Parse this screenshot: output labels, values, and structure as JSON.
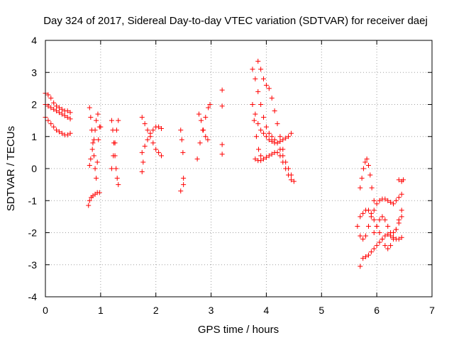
{
  "chart_data": {
    "type": "scatter",
    "title": "Day 324 of 2017, Sidereal Day-to-day VTEC variation (SDTVAR) for receiver daej",
    "xlabel": "GPS time / hours",
    "ylabel": "SDTVAR / TECUs",
    "xlim": [
      0,
      7
    ],
    "ylim": [
      -4,
      4
    ],
    "xticks": [
      "0",
      "1",
      "2",
      "3",
      "4",
      "5",
      "6",
      "7"
    ],
    "yticks": [
      "-4",
      "-3",
      "-2",
      "-1",
      "0",
      "1",
      "2",
      "3",
      "4"
    ],
    "grid": true,
    "marker": "+",
    "color": "#ff0000",
    "series": [
      {
        "name": "sdtvar",
        "tracks": [
          {
            "x": [
              0.0,
              0.05,
              0.1,
              0.15,
              0.2,
              0.25,
              0.3,
              0.35,
              0.4,
              0.45
            ],
            "y": [
              2.35,
              2.3,
              2.2,
              2.05,
              1.95,
              1.9,
              1.85,
              1.8,
              1.8,
              1.75
            ]
          },
          {
            "x": [
              0.0,
              0.05,
              0.1,
              0.15,
              0.2,
              0.25,
              0.3,
              0.35,
              0.4,
              0.45
            ],
            "y": [
              2.0,
              1.95,
              1.9,
              1.85,
              1.8,
              1.75,
              1.7,
              1.65,
              1.6,
              1.55
            ]
          },
          {
            "x": [
              0.0,
              0.05,
              0.1,
              0.15,
              0.2,
              0.25,
              0.3,
              0.35,
              0.4,
              0.45
            ],
            "y": [
              1.6,
              1.5,
              1.4,
              1.3,
              1.2,
              1.15,
              1.1,
              1.05,
              1.05,
              1.1
            ]
          },
          {
            "x": [
              0.8,
              0.82,
              0.84,
              0.86,
              0.88,
              0.9,
              0.92,
              0.94,
              0.96,
              0.98,
              1.0
            ],
            "y": [
              1.9,
              1.6,
              1.2,
              0.8,
              0.4,
              0.0,
              -0.3,
              0.2,
              0.9,
              1.3,
              1.3
            ]
          },
          {
            "x": [
              0.78,
              0.8,
              0.83,
              0.86,
              0.9,
              0.94,
              0.98
            ],
            "y": [
              -1.15,
              -1.0,
              -0.9,
              -0.85,
              -0.8,
              -0.75,
              -0.75
            ]
          },
          {
            "x": [
              0.8,
              0.82,
              0.85,
              0.88,
              0.9,
              0.92,
              0.95
            ],
            "y": [
              0.1,
              0.3,
              0.6,
              0.9,
              1.2,
              1.5,
              1.7
            ]
          },
          {
            "x": [
              1.2,
              1.22,
              1.24,
              1.26,
              1.28,
              1.3,
              1.32
            ],
            "y": [
              1.5,
              1.2,
              0.8,
              0.4,
              0.0,
              -0.3,
              -0.5
            ]
          },
          {
            "x": [
              1.2,
              1.23,
              1.26,
              1.29,
              1.32
            ],
            "y": [
              0.0,
              0.4,
              0.8,
              1.2,
              1.5
            ]
          },
          {
            "x": [
              1.75,
              1.8,
              1.85,
              1.9,
              1.95,
              2.0,
              2.05,
              2.1
            ],
            "y": [
              1.6,
              1.4,
              1.2,
              1.0,
              0.8,
              0.6,
              0.5,
              0.4
            ]
          },
          {
            "x": [
              1.75,
              1.8,
              1.85,
              1.9,
              1.95,
              2.0,
              2.05,
              2.1
            ],
            "y": [
              0.5,
              0.7,
              0.9,
              1.1,
              1.2,
              1.3,
              1.3,
              1.25
            ]
          },
          {
            "x": [
              1.75,
              1.77
            ],
            "y": [
              -0.1,
              0.2
            ]
          },
          {
            "x": [
              2.45,
              2.47,
              2.49,
              2.5
            ],
            "y": [
              1.2,
              0.9,
              0.5,
              -0.3
            ]
          },
          {
            "x": [
              2.45,
              2.5
            ],
            "y": [
              -0.7,
              -0.5
            ]
          },
          {
            "x": [
              2.75,
              2.8,
              2.85,
              2.9,
              2.95,
              2.98
            ],
            "y": [
              0.3,
              0.8,
              1.2,
              1.6,
              1.9,
              2.0
            ]
          },
          {
            "x": [
              2.78,
              2.82,
              2.86,
              2.9,
              2.94
            ],
            "y": [
              1.7,
              1.5,
              1.2,
              1.0,
              0.9
            ]
          },
          {
            "x": [
              3.2,
              3.2,
              3.2,
              3.2
            ],
            "y": [
              2.45,
              1.95,
              0.75,
              0.45
            ]
          },
          {
            "x": [
              3.75,
              3.8,
              3.85,
              3.9,
              3.95,
              4.0,
              4.05,
              4.1,
              4.15,
              4.2,
              4.25,
              4.3,
              4.35,
              4.4,
              4.45,
              4.5
            ],
            "y": [
              3.1,
              2.8,
              2.4,
              2.0,
              1.6,
              1.3,
              1.1,
              1.0,
              0.9,
              0.8,
              0.6,
              0.4,
              0.2,
              0.0,
              -0.2,
              -0.4
            ]
          },
          {
            "x": [
              3.85,
              3.9,
              3.95,
              4.0,
              4.05,
              4.1,
              4.15,
              4.2,
              4.25,
              4.3
            ],
            "y": [
              3.35,
              3.1,
              2.8,
              2.6,
              2.5,
              2.2,
              1.8,
              1.4,
              1.0,
              0.6
            ]
          },
          {
            "x": [
              3.8,
              3.85,
              3.9,
              3.95,
              4.0,
              4.05,
              4.1,
              4.15,
              4.2,
              4.25,
              4.3,
              4.35,
              4.4,
              4.45
            ],
            "y": [
              1.7,
              1.4,
              1.2,
              1.1,
              1.0,
              0.9,
              0.85,
              0.8,
              0.8,
              0.85,
              0.9,
              0.95,
              1.0,
              1.1
            ]
          },
          {
            "x": [
              3.8,
              3.85,
              3.9,
              3.95,
              4.0,
              4.05,
              4.1,
              4.15,
              4.2,
              4.25,
              4.3,
              4.35,
              4.4,
              4.45
            ],
            "y": [
              0.3,
              0.25,
              0.25,
              0.3,
              0.35,
              0.4,
              0.45,
              0.5,
              0.5,
              0.4,
              0.2,
              0.0,
              -0.2,
              -0.35
            ]
          },
          {
            "x": [
              3.75,
              3.78,
              3.82,
              3.86,
              3.9
            ],
            "y": [
              2.0,
              1.5,
              1.0,
              0.6,
              0.4
            ]
          },
          {
            "x": [
              5.65,
              5.7,
              5.75,
              5.8,
              5.85,
              5.9,
              5.95,
              6.0,
              6.05,
              6.1,
              6.15,
              6.2,
              6.25,
              6.3,
              6.35,
              6.4,
              6.45
            ],
            "y": [
              -1.8,
              -2.1,
              -2.2,
              -2.1,
              -1.8,
              -1.5,
              -1.3,
              -1.1,
              -1.0,
              -0.95,
              -0.95,
              -1.0,
              -1.05,
              -1.1,
              -1.0,
              -0.9,
              -0.8
            ]
          },
          {
            "x": [
              5.7,
              5.75,
              5.8,
              5.85,
              5.9,
              5.95,
              6.0,
              6.05,
              6.1,
              6.15,
              6.2,
              6.25,
              6.3,
              6.35,
              6.4,
              6.45
            ],
            "y": [
              -3.05,
              -2.8,
              -2.75,
              -2.7,
              -2.6,
              -2.5,
              -2.4,
              -2.3,
              -2.2,
              -2.1,
              -2.05,
              -2.1,
              -2.15,
              -2.2,
              -2.2,
              -2.15
            ]
          },
          {
            "x": [
              5.7,
              5.75,
              5.8,
              5.85,
              5.9,
              5.95,
              6.0,
              6.05,
              6.1,
              6.15,
              6.2,
              6.25,
              6.3,
              6.35,
              6.4,
              6.45
            ],
            "y": [
              -1.5,
              -1.4,
              -1.3,
              -1.3,
              -1.4,
              -1.6,
              -1.8,
              -2.0,
              -2.2,
              -2.4,
              -2.5,
              -2.4,
              -2.2,
              -1.9,
              -1.6,
              -1.3
            ]
          },
          {
            "x": [
              5.7,
              5.73,
              5.76,
              5.79,
              5.82,
              5.85,
              5.88,
              5.91,
              5.95
            ],
            "y": [
              -0.6,
              -0.3,
              0.0,
              0.2,
              0.3,
              0.1,
              -0.2,
              -0.6,
              -1.0
            ]
          },
          {
            "x": [
              5.95,
              6.0,
              6.05,
              6.1,
              6.15,
              6.2,
              6.25,
              6.3,
              6.35,
              6.4,
              6.45
            ],
            "y": [
              -2.0,
              -1.8,
              -1.6,
              -1.5,
              -1.6,
              -1.8,
              -2.0,
              -2.0,
              -1.9,
              -1.7,
              -1.5
            ]
          },
          {
            "x": [
              6.4,
              6.45,
              6.48
            ],
            "y": [
              -0.35,
              -0.4,
              -0.35
            ]
          }
        ]
      }
    ]
  }
}
